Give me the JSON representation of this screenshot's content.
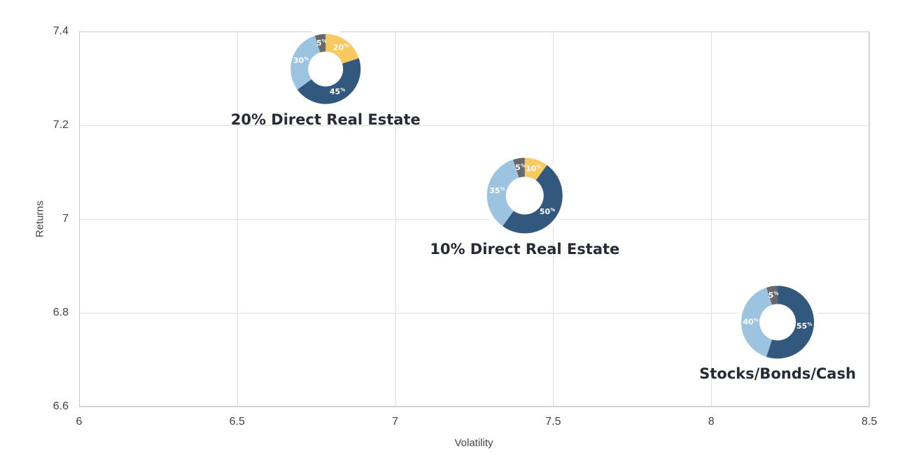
{
  "chart_data": {
    "type": "scatter",
    "marker_style": "donut-pie",
    "title": "",
    "xlabel": "Volatility",
    "ylabel": "Returns",
    "xlim": [
      6,
      8.5
    ],
    "ylim": [
      6.6,
      7.4
    ],
    "x_ticks": [
      6,
      6.5,
      7,
      7.5,
      8,
      8.5
    ],
    "x_tick_labels": [
      "6",
      "6.5",
      "7",
      "7.5",
      "8",
      "8.5"
    ],
    "y_ticks": [
      7.4,
      7.2,
      7,
      6.8,
      6.6
    ],
    "y_tick_labels": [
      "7.4",
      "7.2",
      "7",
      "6.8",
      "6.6"
    ],
    "grid": true,
    "legend": "none",
    "slice_value_suffix": "%",
    "points": [
      {
        "label": "20% Direct Real Estate",
        "x": 6.78,
        "y": 7.32,
        "marker_radius_px": 50,
        "slices": [
          {
            "value": 20,
            "color": "#F9C961"
          },
          {
            "value": 45,
            "color": "#32587E"
          },
          {
            "value": 30,
            "color": "#9CC4E0"
          },
          {
            "value": 5,
            "color": "#67696D"
          }
        ]
      },
      {
        "label": "10% Direct Real Estate",
        "x": 7.41,
        "y": 7.05,
        "marker_radius_px": 54,
        "slices": [
          {
            "value": 10,
            "color": "#F9C961"
          },
          {
            "value": 50,
            "color": "#32587E"
          },
          {
            "value": 35,
            "color": "#9CC4E0"
          },
          {
            "value": 5,
            "color": "#67696D"
          }
        ]
      },
      {
        "label": "Stocks/Bonds/Cash",
        "x": 8.21,
        "y": 6.78,
        "marker_radius_px": 52,
        "slices": [
          {
            "value": 55,
            "color": "#32587E"
          },
          {
            "value": 40,
            "color": "#9CC4E0"
          },
          {
            "value": 5,
            "color": "#67696D"
          }
        ]
      }
    ],
    "colors": {
      "dark_blue": "#32587E",
      "light_blue": "#9CC4E0",
      "yellow": "#F9C961",
      "gray": "#67696D",
      "grid": "#DEDEDE",
      "axis_border": "#C7CAD6",
      "tick_text": "#3E4249",
      "point_label_text": "#272B35",
      "slice_label_text": "#FFFFFF",
      "background": "#FFFFFF"
    }
  }
}
